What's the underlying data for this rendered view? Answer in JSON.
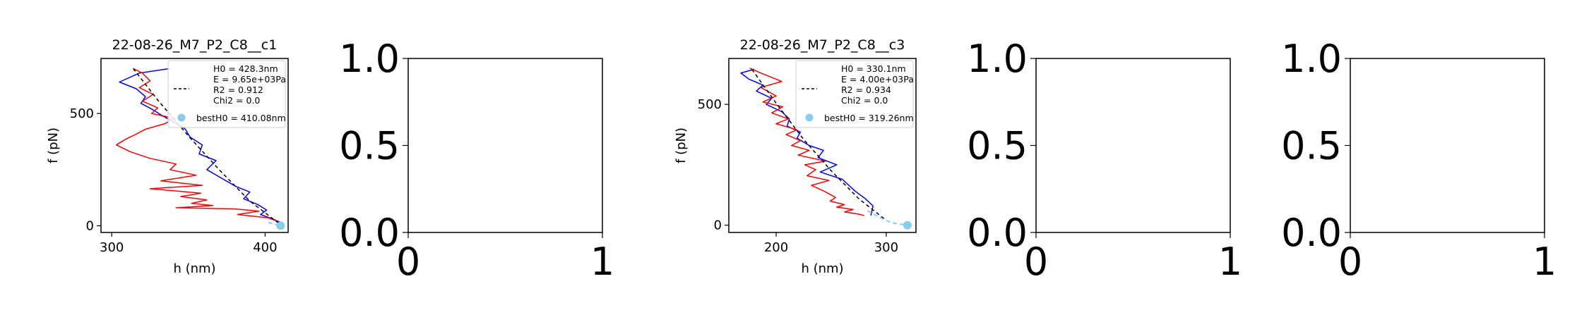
{
  "chart_data": [
    {
      "type": "line",
      "title": "22-08-26_M7_P2_C8__c1",
      "xlabel": "h (nm)",
      "ylabel": "f (pN)",
      "xlim": [
        293,
        415
      ],
      "ylim": [
        -30,
        745
      ],
      "xticks": [
        300,
        400
      ],
      "yticks": [
        0,
        500
      ],
      "grid": false,
      "legend": {
        "placement": "upper right",
        "fit_lines": [
          "H0 = 428.3nm",
          "E = 9.65e+03Pa",
          "R2 = 0.912",
          "Chi2 = 0.0"
        ],
        "point_label": "bestH0 = 410.08nm"
      },
      "series": [
        {
          "color": "#0000ff",
          "x": [
            338,
            318,
            305,
            316,
            322,
            319,
            326,
            333,
            341,
            348,
            351,
            359,
            357,
            368,
            362,
            372,
            381,
            390,
            386,
            395,
            401,
            397,
            405,
            410
          ],
          "y": [
            700,
            680,
            640,
            610,
            575,
            545,
            520,
            490,
            460,
            430,
            395,
            360,
            320,
            290,
            250,
            210,
            175,
            150,
            120,
            95,
            70,
            50,
            30,
            15
          ]
        },
        {
          "color": "#ff0000",
          "x": [
            314,
            320,
            325,
            318,
            327,
            320,
            330,
            326,
            340,
            335,
            322,
            315,
            309,
            303,
            312,
            325,
            342,
            338,
            355,
            332,
            359,
            325,
            358,
            345,
            362,
            352,
            366,
            342,
            380,
            396,
            382,
            402,
            408
          ],
          "y": [
            700,
            680,
            645,
            615,
            585,
            555,
            525,
            500,
            480,
            455,
            430,
            405,
            385,
            360,
            330,
            300,
            275,
            250,
            225,
            200,
            180,
            165,
            145,
            130,
            115,
            100,
            90,
            80,
            75,
            65,
            50,
            35,
            20
          ]
        }
      ],
      "fit": {
        "color": "#000000",
        "style": "dashed",
        "x": [
          314,
          330,
          350,
          370,
          390,
          410
        ],
        "y": [
          700,
          560,
          400,
          250,
          110,
          5
        ]
      },
      "extrapolation": {
        "color": "#87ceeb",
        "style": "dashed",
        "x": [
          402,
          410
        ],
        "y": [
          15,
          0
        ]
      },
      "point": {
        "color": "#87ceeb",
        "x": 410.08,
        "y": 0
      }
    },
    {
      "type": "line",
      "xlim": [
        0,
        1
      ],
      "ylim": [
        0,
        1
      ],
      "xticks": [
        "0",
        "1"
      ],
      "yticks": [
        "0.0",
        "0.5",
        "1.0"
      ]
    },
    {
      "type": "line",
      "title": "22-08-26_M7_P2_C8__c3",
      "xlabel": "h (nm)",
      "ylabel": "f (pN)",
      "xlim": [
        157,
        327
      ],
      "ylim": [
        -30,
        690
      ],
      "xticks": [
        200,
        300
      ],
      "yticks": [
        0,
        500
      ],
      "grid": false,
      "legend": {
        "placement": "upper right",
        "fit_lines": [
          "H0 = 330.1nm",
          "E = 4.00e+03Pa",
          "R2 = 0.934",
          "Chi2 = 0.0"
        ],
        "point_label": "bestH0 = 319.26nm"
      },
      "series": [
        {
          "color": "#0000ff",
          "x": [
            180,
            168,
            175,
            188,
            182,
            196,
            191,
            205,
            212,
            210,
            222,
            219,
            230,
            243,
            238,
            255,
            240,
            260,
            266,
            272,
            281,
            288,
            286
          ],
          "y": [
            645,
            630,
            605,
            580,
            555,
            525,
            500,
            470,
            440,
            410,
            385,
            360,
            330,
            310,
            280,
            250,
            220,
            190,
            165,
            140,
            110,
            80,
            40
          ]
        },
        {
          "color": "#ff0000",
          "x": [
            176,
            186,
            205,
            186,
            200,
            188,
            206,
            196,
            211,
            200,
            219,
            209,
            222,
            214,
            230,
            220,
            245,
            226,
            236,
            228,
            248,
            232,
            244,
            254,
            249,
            262,
            255,
            270,
            262,
            276,
            280
          ],
          "y": [
            650,
            630,
            595,
            570,
            535,
            510,
            490,
            465,
            440,
            420,
            395,
            375,
            350,
            330,
            310,
            290,
            265,
            250,
            230,
            205,
            185,
            165,
            140,
            115,
            100,
            85,
            75,
            65,
            55,
            45,
            40
          ]
        }
      ],
      "fit": {
        "color": "#000000",
        "style": "dashed",
        "x": [
          178,
          200,
          225,
          250,
          275,
          300
        ],
        "y": [
          645,
          505,
          355,
          225,
          110,
          20
        ]
      },
      "extrapolation": {
        "color": "#87ceeb",
        "style": "dashed",
        "x": [
          283,
          295,
          305,
          319
        ],
        "y": [
          60,
          30,
          10,
          0
        ]
      },
      "point": {
        "color": "#87ceeb",
        "x": 319.26,
        "y": 0
      }
    },
    {
      "type": "line",
      "xlim": [
        0,
        1
      ],
      "ylim": [
        0,
        1
      ],
      "xticks": [
        "0",
        "1"
      ],
      "yticks": [
        "0.0",
        "0.5",
        "1.0"
      ]
    },
    {
      "type": "line",
      "xlim": [
        0,
        1
      ],
      "ylim": [
        0,
        1
      ],
      "xticks": [
        "0",
        "1"
      ],
      "yticks": [
        "0.0",
        "0.5",
        "1.0"
      ]
    }
  ]
}
